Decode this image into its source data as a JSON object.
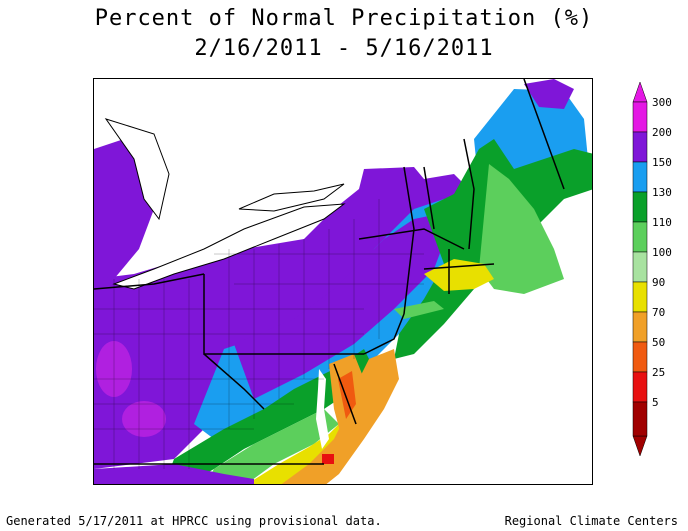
{
  "title_line1": "Percent of Normal Precipitation (%)",
  "title_line2": "2/16/2011 - 5/16/2011",
  "legend": {
    "entries": [
      {
        "label": "300",
        "color": "#e418e4"
      },
      {
        "label": "200",
        "color": "#7f16d8"
      },
      {
        "label": "150",
        "color": "#1a9ef0"
      },
      {
        "label": "130",
        "color": "#0aa02a"
      },
      {
        "label": "110",
        "color": "#5ccf5c"
      },
      {
        "label": "100",
        "color": "#a8e2a0"
      },
      {
        "label": "90",
        "color": "#e8e000"
      },
      {
        "label": "70",
        "color": "#f0a028"
      },
      {
        "label": "50",
        "color": "#f05a10"
      },
      {
        "label": "25",
        "color": "#e81010"
      },
      {
        "label": "5",
        "color": "#a00000"
      }
    ]
  },
  "footer_left": "Generated 5/17/2011 at HPRCC using provisional data.",
  "footer_right": "Regional Climate Centers"
}
